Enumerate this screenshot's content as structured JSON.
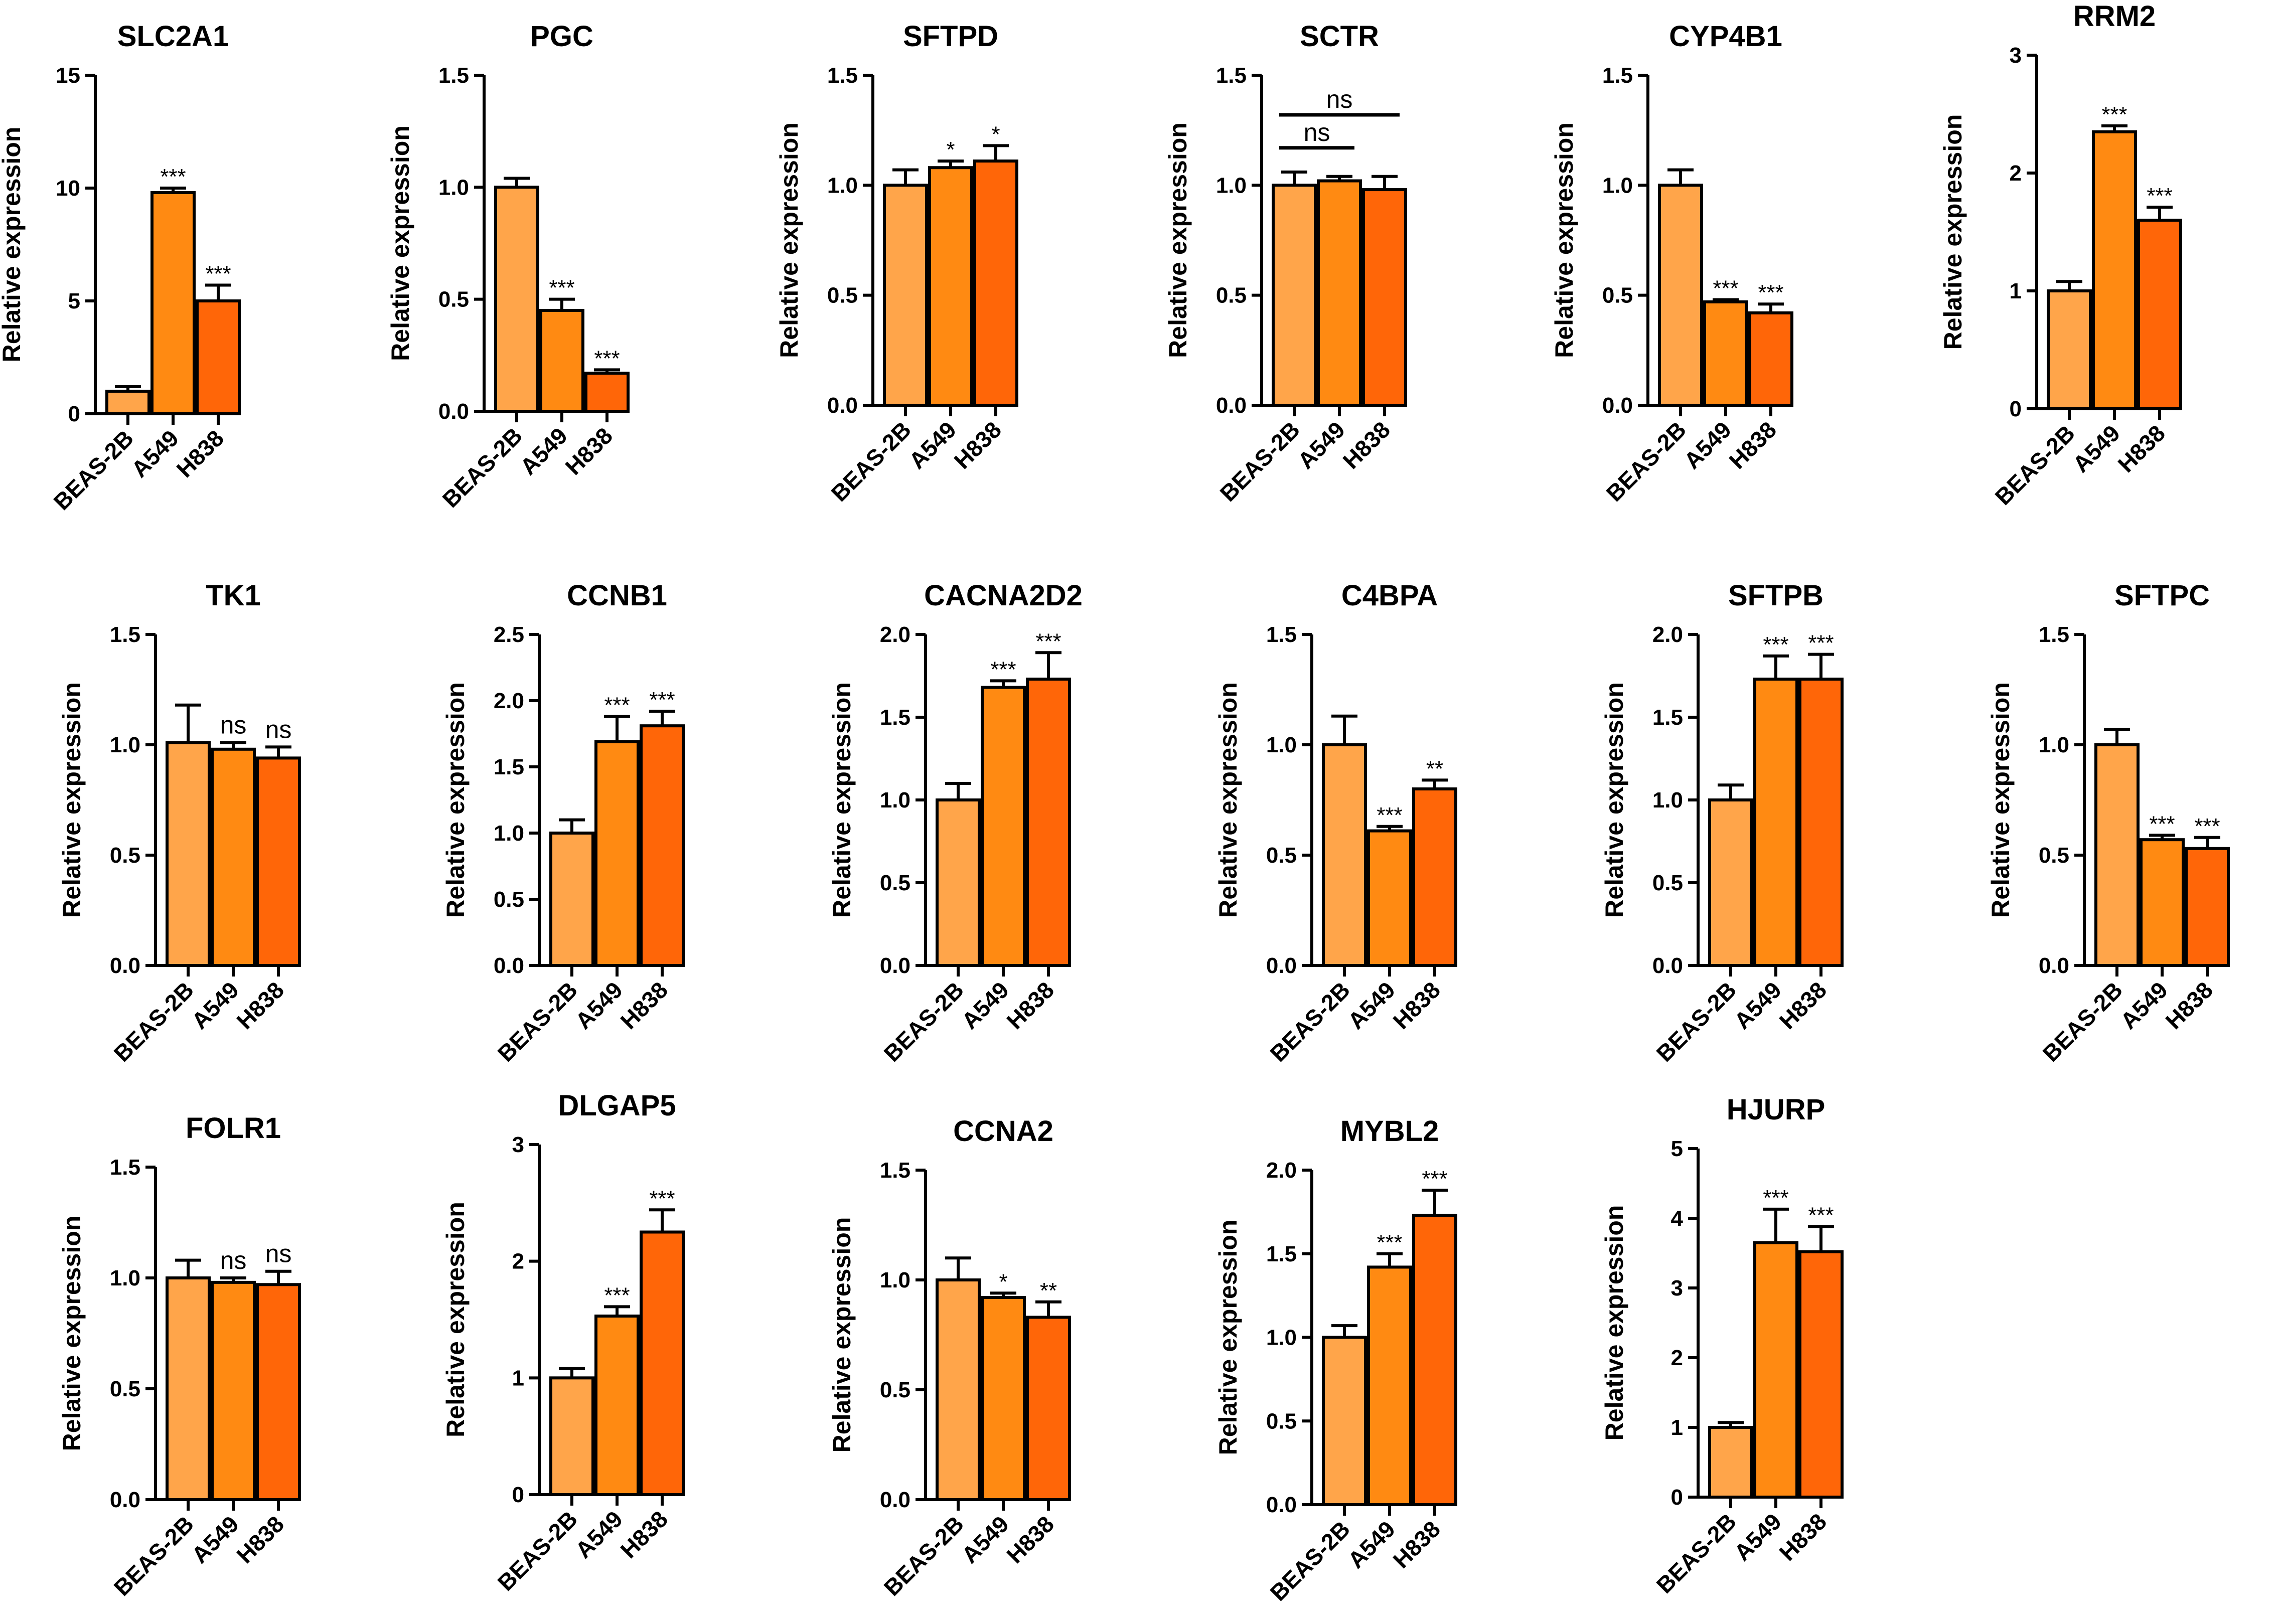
{
  "figure": {
    "background": "#ffffff"
  },
  "style": {
    "colors": [
      "#FFA54A",
      "#FF8A12",
      "#FF6608"
    ],
    "edge": "#000000"
  },
  "chart_data": [
    {
      "type": "bar",
      "title": "SLC2A1",
      "ylabel": "Relative expression",
      "categories": [
        "BEAS-2B",
        "A549",
        "H838"
      ],
      "ylim": [
        0,
        15
      ],
      "yticks": [
        "0",
        "5",
        "10",
        "15"
      ],
      "values": [
        1.0,
        9.8,
        5.0
      ],
      "errors": [
        0.2,
        0.2,
        0.7
      ],
      "annotations": [
        "",
        "***",
        "***"
      ]
    },
    {
      "type": "bar",
      "title": "PGC",
      "ylabel": "Relative expression",
      "categories": [
        "BEAS-2B",
        "A549",
        "H838"
      ],
      "ylim": [
        0,
        1.5
      ],
      "yticks": [
        "0.0",
        "0.5",
        "1.0",
        "1.5"
      ],
      "values": [
        1.0,
        0.45,
        0.17
      ],
      "errors": [
        0.04,
        0.05,
        0.015
      ],
      "annotations": [
        "",
        "***",
        "***"
      ]
    },
    {
      "type": "bar",
      "title": "SFTPD",
      "ylabel": "Relative expression",
      "categories": [
        "BEAS-2B",
        "A549",
        "H838"
      ],
      "ylim": [
        0,
        1.5
      ],
      "yticks": [
        "0.0",
        "0.5",
        "1.0",
        "1.5"
      ],
      "values": [
        1.0,
        1.08,
        1.11
      ],
      "errors": [
        0.07,
        0.03,
        0.07
      ],
      "annotations": [
        "",
        "*",
        "*"
      ]
    },
    {
      "type": "bar",
      "title": "SCTR",
      "ylabel": "Relative expression",
      "categories": [
        "BEAS-2B",
        "A549",
        "H838"
      ],
      "ylim": [
        0,
        1.5
      ],
      "yticks": [
        "0.0",
        "0.5",
        "1.0",
        "1.5"
      ],
      "values": [
        1.0,
        1.02,
        0.98
      ],
      "errors": [
        0.06,
        0.02,
        0.06
      ],
      "annotations": [
        "",
        "",
        ""
      ],
      "brackets": [
        {
          "from": 0,
          "to": 1,
          "y": 1.17,
          "label": "ns"
        },
        {
          "from": 0,
          "to": 2,
          "y": 1.32,
          "label": "ns"
        }
      ]
    },
    {
      "type": "bar",
      "title": "CYP4B1",
      "ylabel": "Relative expression",
      "categories": [
        "BEAS-2B",
        "A549",
        "H838"
      ],
      "ylim": [
        0,
        1.5
      ],
      "yticks": [
        "0.0",
        "0.5",
        "1.0",
        "1.5"
      ],
      "values": [
        1.0,
        0.47,
        0.42
      ],
      "errors": [
        0.07,
        0.01,
        0.04
      ],
      "annotations": [
        "",
        "***",
        "***"
      ]
    },
    {
      "type": "bar",
      "title": "RRM2",
      "ylabel": "Relative expression",
      "categories": [
        "BEAS-2B",
        "A549",
        "H838"
      ],
      "ylim": [
        0,
        3
      ],
      "yticks": [
        "0",
        "1",
        "2",
        "3"
      ],
      "values": [
        1.0,
        2.35,
        1.6
      ],
      "errors": [
        0.08,
        0.05,
        0.11
      ],
      "annotations": [
        "",
        "***",
        "***"
      ]
    },
    {
      "type": "bar",
      "title": "TK1",
      "ylabel": "Relative expression",
      "categories": [
        "BEAS-2B",
        "A549",
        "H838"
      ],
      "ylim": [
        0,
        1.5
      ],
      "yticks": [
        "0.0",
        "0.5",
        "1.0",
        "1.5"
      ],
      "values": [
        1.01,
        0.98,
        0.94
      ],
      "errors": [
        0.17,
        0.03,
        0.05
      ],
      "annotations": [
        "",
        "ns",
        "ns"
      ]
    },
    {
      "type": "bar",
      "title": "CCNB1",
      "ylabel": "Relative expression",
      "categories": [
        "BEAS-2B",
        "A549",
        "H838"
      ],
      "ylim": [
        0,
        2.5
      ],
      "yticks": [
        "0.0",
        "0.5",
        "1.0",
        "1.5",
        "2.0",
        "2.5"
      ],
      "values": [
        1.0,
        1.69,
        1.81
      ],
      "errors": [
        0.1,
        0.19,
        0.11
      ],
      "annotations": [
        "",
        "***",
        "***"
      ]
    },
    {
      "type": "bar",
      "title": "CACNA2D2",
      "ylabel": "Relative expression",
      "categories": [
        "BEAS-2B",
        "A549",
        "H838"
      ],
      "ylim": [
        0,
        2.0
      ],
      "yticks": [
        "0.0",
        "0.5",
        "1.0",
        "1.5",
        "2.0"
      ],
      "values": [
        1.0,
        1.68,
        1.73
      ],
      "errors": [
        0.1,
        0.04,
        0.16
      ],
      "annotations": [
        "",
        "***",
        "***"
      ]
    },
    {
      "type": "bar",
      "title": "C4BPA",
      "ylabel": "Relative expression",
      "categories": [
        "BEAS-2B",
        "A549",
        "H838"
      ],
      "ylim": [
        0,
        1.5
      ],
      "yticks": [
        "0.0",
        "0.5",
        "1.0",
        "1.5"
      ],
      "values": [
        1.0,
        0.61,
        0.8
      ],
      "errors": [
        0.13,
        0.02,
        0.04
      ],
      "annotations": [
        "",
        "***",
        "**"
      ]
    },
    {
      "type": "bar",
      "title": "SFTPB",
      "ylabel": "Relative expression",
      "categories": [
        "BEAS-2B",
        "A549",
        "H838"
      ],
      "ylim": [
        0,
        2.0
      ],
      "yticks": [
        "0.0",
        "0.5",
        "1.0",
        "1.5",
        "2.0"
      ],
      "values": [
        1.0,
        1.73,
        1.73
      ],
      "errors": [
        0.09,
        0.14,
        0.15
      ],
      "annotations": [
        "",
        "***",
        "***"
      ]
    },
    {
      "type": "bar",
      "title": "SFTPC",
      "ylabel": "Relative expression",
      "categories": [
        "BEAS-2B",
        "A549",
        "H838"
      ],
      "ylim": [
        0,
        1.5
      ],
      "yticks": [
        "0.0",
        "0.5",
        "1.0",
        "1.5"
      ],
      "values": [
        1.0,
        0.57,
        0.53
      ],
      "errors": [
        0.07,
        0.02,
        0.05
      ],
      "annotations": [
        "",
        "***",
        "***"
      ]
    },
    {
      "type": "bar",
      "title": "FOLR1",
      "ylabel": "Relative expression",
      "categories": [
        "BEAS-2B",
        "A549",
        "H838"
      ],
      "ylim": [
        0,
        1.5
      ],
      "yticks": [
        "0.0",
        "0.5",
        "1.0",
        "1.5"
      ],
      "values": [
        1.0,
        0.98,
        0.97
      ],
      "errors": [
        0.08,
        0.02,
        0.06
      ],
      "annotations": [
        "",
        "ns",
        "ns"
      ]
    },
    {
      "type": "bar",
      "title": "DLGAP5",
      "ylabel": "Relative expression",
      "categories": [
        "BEAS-2B",
        "A549",
        "H838"
      ],
      "ylim": [
        0,
        3
      ],
      "yticks": [
        "0",
        "1",
        "2",
        "3"
      ],
      "values": [
        1.0,
        1.53,
        2.25
      ],
      "errors": [
        0.08,
        0.08,
        0.19
      ],
      "annotations": [
        "",
        "***",
        "***"
      ]
    },
    {
      "type": "bar",
      "title": "CCNA2",
      "ylabel": "Relative expression",
      "categories": [
        "BEAS-2B",
        "A549",
        "H838"
      ],
      "ylim": [
        0,
        1.5
      ],
      "yticks": [
        "0.0",
        "0.5",
        "1.0",
        "1.5"
      ],
      "values": [
        1.0,
        0.92,
        0.83
      ],
      "errors": [
        0.1,
        0.02,
        0.07
      ],
      "annotations": [
        "",
        "*",
        "**"
      ]
    },
    {
      "type": "bar",
      "title": "MYBL2",
      "ylabel": "Relative expression",
      "categories": [
        "BEAS-2B",
        "A549",
        "H838"
      ],
      "ylim": [
        0,
        2.0
      ],
      "yticks": [
        "0.0",
        "0.5",
        "1.0",
        "1.5",
        "2.0"
      ],
      "values": [
        1.0,
        1.42,
        1.73
      ],
      "errors": [
        0.07,
        0.08,
        0.15
      ],
      "annotations": [
        "",
        "***",
        "***"
      ]
    },
    {
      "type": "bar",
      "title": "HJURP",
      "ylabel": "Relative expression",
      "categories": [
        "BEAS-2B",
        "A549",
        "H838"
      ],
      "ylim": [
        0,
        5
      ],
      "yticks": [
        "0",
        "1",
        "2",
        "3",
        "4",
        "5"
      ],
      "values": [
        1.0,
        3.65,
        3.52
      ],
      "errors": [
        0.07,
        0.48,
        0.36
      ],
      "annotations": [
        "",
        "***",
        "***"
      ]
    }
  ]
}
